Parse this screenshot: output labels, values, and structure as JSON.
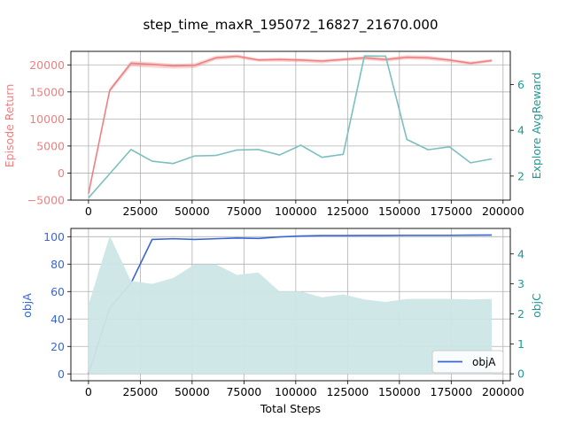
{
  "figure": {
    "title": "step_time_maxR_195072_16827_21670.000",
    "x_steps": [
      0,
      10240,
      20480,
      30720,
      40960,
      51200,
      61440,
      71680,
      81920,
      92160,
      102400,
      112640,
      122880,
      133120,
      143360,
      153600,
      163840,
      174080,
      184320,
      194560
    ]
  },
  "chart_data": [
    {
      "type": "line",
      "title": "step_time_maxR_195072_16827_21670.000",
      "xlabel": "",
      "ylabel": "Episode Return",
      "ylabel_right": "Explore AvgReward",
      "xlim": [
        -8500,
        203500
      ],
      "ylim": [
        -5000,
        22500
      ],
      "ylim_right": [
        0.95,
        7.45
      ],
      "x_ticks": [
        0,
        25000,
        50000,
        75000,
        100000,
        125000,
        150000,
        175000,
        200000
      ],
      "x_tick_labels": [
        "0",
        "25000",
        "50000",
        "75000",
        "100000",
        "125000",
        "150000",
        "175000",
        "200000"
      ],
      "y_ticks": [
        -5000,
        0,
        5000,
        10000,
        15000,
        20000
      ],
      "y_tick_labels": [
        "−5000",
        "0",
        "5000",
        "10000",
        "15000",
        "20000"
      ],
      "y_ticks_right": [
        2,
        4,
        6
      ],
      "y_tick_labels_right": [
        "2",
        "4",
        "6"
      ],
      "grid": true,
      "colors": {
        "return": "#f08080",
        "explore": "#7bbfbf",
        "left_axis_text": "#f08080",
        "right_axis_text": "#1a9b96"
      },
      "series": [
        {
          "axis": "left",
          "values": [
            -3800,
            15300,
            20300,
            20100,
            19800,
            19900,
            21300,
            21600,
            20900,
            21000,
            20900,
            20700,
            21000,
            21300,
            21000,
            21400,
            21300,
            20900,
            20300,
            20800
          ],
          "band_low": [
            -3900,
            14900,
            19700,
            19500,
            19300,
            19400,
            20900,
            21200,
            20600,
            20600,
            20500,
            20300,
            20700,
            20900,
            20600,
            21000,
            20900,
            20500,
            20000,
            20500
          ],
          "band_high": [
            -3700,
            15700,
            20700,
            20500,
            20200,
            20300,
            21700,
            21900,
            21200,
            21300,
            21200,
            21000,
            21300,
            21600,
            21300,
            21800,
            21700,
            21200,
            20600,
            21100
          ]
        },
        {
          "axis": "right",
          "values": [
            1.05,
            2.1,
            3.16,
            2.65,
            2.55,
            2.88,
            2.9,
            3.14,
            3.16,
            2.92,
            3.35,
            2.82,
            2.95,
            7.25,
            7.24,
            3.6,
            3.15,
            3.28,
            2.58,
            2.75
          ]
        }
      ]
    },
    {
      "type": "line",
      "xlabel": "Total Steps",
      "ylabel": "objA",
      "ylabel_right": "objC",
      "xlim": [
        -8500,
        203500
      ],
      "ylim": [
        -5,
        106
      ],
      "ylim_right": [
        -0.23,
        4.85
      ],
      "x_ticks": [
        0,
        25000,
        50000,
        75000,
        100000,
        125000,
        150000,
        175000,
        200000
      ],
      "x_tick_labels": [
        "0",
        "25000",
        "50000",
        "75000",
        "100000",
        "125000",
        "150000",
        "175000",
        "200000"
      ],
      "y_ticks": [
        0,
        20,
        40,
        60,
        80,
        100
      ],
      "y_tick_labels": [
        "0",
        "20",
        "40",
        "60",
        "80",
        "100"
      ],
      "y_ticks_right": [
        0,
        1,
        2,
        3,
        4
      ],
      "y_tick_labels_right": [
        "0",
        "1",
        "2",
        "3",
        "4"
      ],
      "grid": true,
      "legend": {
        "placement": "lower right",
        "entries": [
          "objA"
        ]
      },
      "colors": {
        "objA": "#3a66d4",
        "objC_fill": "#cce6e6",
        "left_axis_text": "#3a66d4",
        "right_axis_text": "#1a9b96"
      },
      "series": [
        {
          "name": "objA",
          "axis": "left",
          "values": [
            0,
            48,
            66,
            98,
            98.5,
            98,
            98.5,
            99,
            98.7,
            99.8,
            100.5,
            100.8,
            100.8,
            100.9,
            100.9,
            101,
            101,
            101,
            101.1,
            101.2
          ]
        },
        {
          "axis": "right",
          "style": "area",
          "values": [
            2.3,
            4.6,
            3.1,
            3.0,
            3.2,
            3.65,
            3.65,
            3.3,
            3.38,
            2.75,
            2.75,
            2.55,
            2.65,
            2.48,
            2.4,
            2.5,
            2.5,
            2.5,
            2.48,
            2.5
          ]
        }
      ]
    }
  ]
}
